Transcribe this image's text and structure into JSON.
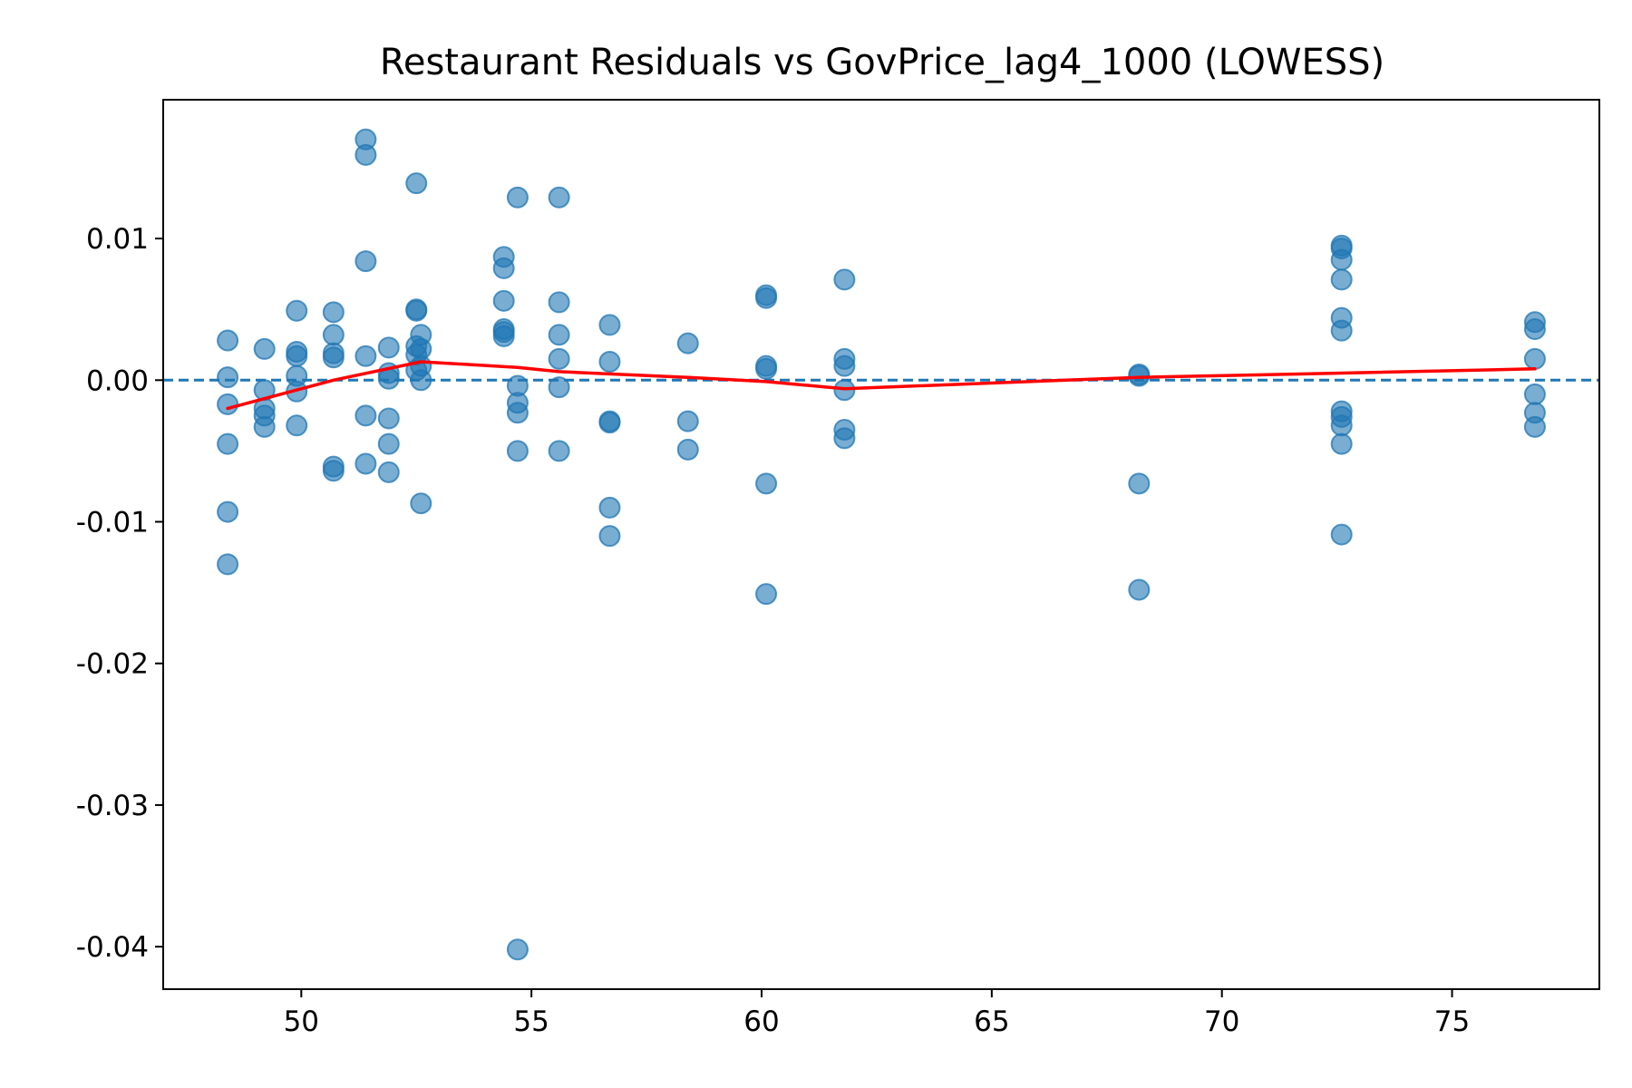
{
  "chart_data": {
    "type": "scatter",
    "title": "Restaurant Residuals vs GovPrice_lag4_1000 (LOWESS)",
    "xlabel": "",
    "ylabel": "",
    "xlim": [
      47.0,
      78.2
    ],
    "ylim": [
      -0.043,
      0.0198
    ],
    "x_ticks": [
      50,
      55,
      60,
      65,
      70,
      75
    ],
    "x_tick_labels": [
      "50",
      "55",
      "60",
      "65",
      "70",
      "75"
    ],
    "y_ticks": [
      0.01,
      0.0,
      -0.01,
      -0.02,
      -0.03,
      -0.04
    ],
    "y_tick_labels": [
      "0.01",
      "0.00",
      "-0.01",
      "-0.02",
      "-0.03",
      "-0.04"
    ],
    "grid": false,
    "legend": "none",
    "reference_line": {
      "y": 0.0,
      "style": "dashed",
      "color": "#1f77b4"
    },
    "scatter": {
      "color": "#1f77b4",
      "alpha": 0.6,
      "points": [
        {
          "x": 48.4,
          "y": 0.0028
        },
        {
          "x": 48.4,
          "y": 0.0002
        },
        {
          "x": 48.4,
          "y": -0.0017
        },
        {
          "x": 48.4,
          "y": -0.0045
        },
        {
          "x": 48.4,
          "y": -0.0093
        },
        {
          "x": 48.4,
          "y": -0.013
        },
        {
          "x": 49.2,
          "y": 0.0022
        },
        {
          "x": 49.2,
          "y": -0.0007
        },
        {
          "x": 49.2,
          "y": -0.002
        },
        {
          "x": 49.2,
          "y": -0.0025
        },
        {
          "x": 49.2,
          "y": -0.0033
        },
        {
          "x": 49.9,
          "y": 0.0049
        },
        {
          "x": 49.9,
          "y": 0.002
        },
        {
          "x": 49.9,
          "y": 0.0017
        },
        {
          "x": 49.9,
          "y": 0.0003
        },
        {
          "x": 49.9,
          "y": -0.0008
        },
        {
          "x": 49.9,
          "y": -0.0032
        },
        {
          "x": 50.7,
          "y": 0.0048
        },
        {
          "x": 50.7,
          "y": 0.0032
        },
        {
          "x": 50.7,
          "y": 0.0019
        },
        {
          "x": 50.7,
          "y": 0.0016
        },
        {
          "x": 50.7,
          "y": -0.0061
        },
        {
          "x": 50.7,
          "y": -0.0064
        },
        {
          "x": 51.4,
          "y": 0.017
        },
        {
          "x": 51.4,
          "y": 0.0159
        },
        {
          "x": 51.4,
          "y": 0.0084
        },
        {
          "x": 51.4,
          "y": 0.0017
        },
        {
          "x": 51.4,
          "y": -0.0025
        },
        {
          "x": 51.4,
          "y": -0.0059
        },
        {
          "x": 51.9,
          "y": 0.0023
        },
        {
          "x": 51.9,
          "y": 0.0005
        },
        {
          "x": 51.9,
          "y": 0.0001
        },
        {
          "x": 51.9,
          "y": -0.0027
        },
        {
          "x": 51.9,
          "y": -0.0045
        },
        {
          "x": 51.9,
          "y": -0.0065
        },
        {
          "x": 52.5,
          "y": 0.0139
        },
        {
          "x": 52.5,
          "y": 0.005
        },
        {
          "x": 52.5,
          "y": 0.0049
        },
        {
          "x": 52.5,
          "y": 0.0024
        },
        {
          "x": 52.5,
          "y": 0.0018
        },
        {
          "x": 52.5,
          "y": 0.0007
        },
        {
          "x": 52.6,
          "y": 0.0032
        },
        {
          "x": 52.6,
          "y": 0.0022
        },
        {
          "x": 52.6,
          "y": 0.001
        },
        {
          "x": 52.6,
          "y": 0.0
        },
        {
          "x": 52.6,
          "y": -0.0087
        },
        {
          "x": 54.4,
          "y": 0.0087
        },
        {
          "x": 54.4,
          "y": 0.0079
        },
        {
          "x": 54.4,
          "y": 0.0056
        },
        {
          "x": 54.4,
          "y": 0.0036
        },
        {
          "x": 54.4,
          "y": 0.0034
        },
        {
          "x": 54.4,
          "y": 0.0031
        },
        {
          "x": 54.7,
          "y": 0.0129
        },
        {
          "x": 54.7,
          "y": -0.0004
        },
        {
          "x": 54.7,
          "y": -0.0016
        },
        {
          "x": 54.7,
          "y": -0.0023
        },
        {
          "x": 54.7,
          "y": -0.005
        },
        {
          "x": 54.7,
          "y": -0.0402
        },
        {
          "x": 55.6,
          "y": 0.0129
        },
        {
          "x": 55.6,
          "y": 0.0055
        },
        {
          "x": 55.6,
          "y": 0.0032
        },
        {
          "x": 55.6,
          "y": 0.0015
        },
        {
          "x": 55.6,
          "y": -0.0005
        },
        {
          "x": 55.6,
          "y": -0.005
        },
        {
          "x": 56.7,
          "y": 0.0039
        },
        {
          "x": 56.7,
          "y": 0.0013
        },
        {
          "x": 56.7,
          "y": -0.0029
        },
        {
          "x": 56.7,
          "y": -0.003
        },
        {
          "x": 56.7,
          "y": -0.009
        },
        {
          "x": 56.7,
          "y": -0.011
        },
        {
          "x": 58.4,
          "y": 0.0026
        },
        {
          "x": 58.4,
          "y": -0.0029
        },
        {
          "x": 58.4,
          "y": -0.0049
        },
        {
          "x": 60.1,
          "y": 0.006
        },
        {
          "x": 60.1,
          "y": 0.0058
        },
        {
          "x": 60.1,
          "y": 0.001
        },
        {
          "x": 60.1,
          "y": 0.0008
        },
        {
          "x": 60.1,
          "y": -0.0073
        },
        {
          "x": 60.1,
          "y": -0.0151
        },
        {
          "x": 61.8,
          "y": 0.0071
        },
        {
          "x": 61.8,
          "y": 0.0015
        },
        {
          "x": 61.8,
          "y": 0.001
        },
        {
          "x": 61.8,
          "y": -0.0007
        },
        {
          "x": 61.8,
          "y": -0.0035
        },
        {
          "x": 61.8,
          "y": -0.0041
        },
        {
          "x": 68.2,
          "y": 0.0004
        },
        {
          "x": 68.2,
          "y": 0.0003
        },
        {
          "x": 68.2,
          "y": -0.0073
        },
        {
          "x": 68.2,
          "y": -0.0148
        },
        {
          "x": 72.6,
          "y": 0.0095
        },
        {
          "x": 72.6,
          "y": 0.0093
        },
        {
          "x": 72.6,
          "y": 0.0085
        },
        {
          "x": 72.6,
          "y": 0.0071
        },
        {
          "x": 72.6,
          "y": 0.0044
        },
        {
          "x": 72.6,
          "y": 0.0035
        },
        {
          "x": 72.6,
          "y": -0.0022
        },
        {
          "x": 72.6,
          "y": -0.0026
        },
        {
          "x": 72.6,
          "y": -0.0032
        },
        {
          "x": 72.6,
          "y": -0.0045
        },
        {
          "x": 72.6,
          "y": -0.0109
        },
        {
          "x": 76.8,
          "y": 0.0041
        },
        {
          "x": 76.8,
          "y": 0.0036
        },
        {
          "x": 76.8,
          "y": 0.0015
        },
        {
          "x": 76.8,
          "y": -0.001
        },
        {
          "x": 76.8,
          "y": -0.0023
        },
        {
          "x": 76.8,
          "y": -0.0033
        }
      ]
    },
    "lowess": {
      "color": "#ff0000",
      "points": [
        {
          "x": 48.4,
          "y": -0.002
        },
        {
          "x": 50.7,
          "y": 0.0
        },
        {
          "x": 52.6,
          "y": 0.0013
        },
        {
          "x": 54.7,
          "y": 0.0009
        },
        {
          "x": 55.6,
          "y": 0.0006
        },
        {
          "x": 58.4,
          "y": 0.0002
        },
        {
          "x": 60.1,
          "y": -0.0001
        },
        {
          "x": 61.8,
          "y": -0.0006
        },
        {
          "x": 68.2,
          "y": 0.0002
        },
        {
          "x": 72.6,
          "y": 0.0005
        },
        {
          "x": 76.8,
          "y": 0.0008
        }
      ]
    }
  }
}
